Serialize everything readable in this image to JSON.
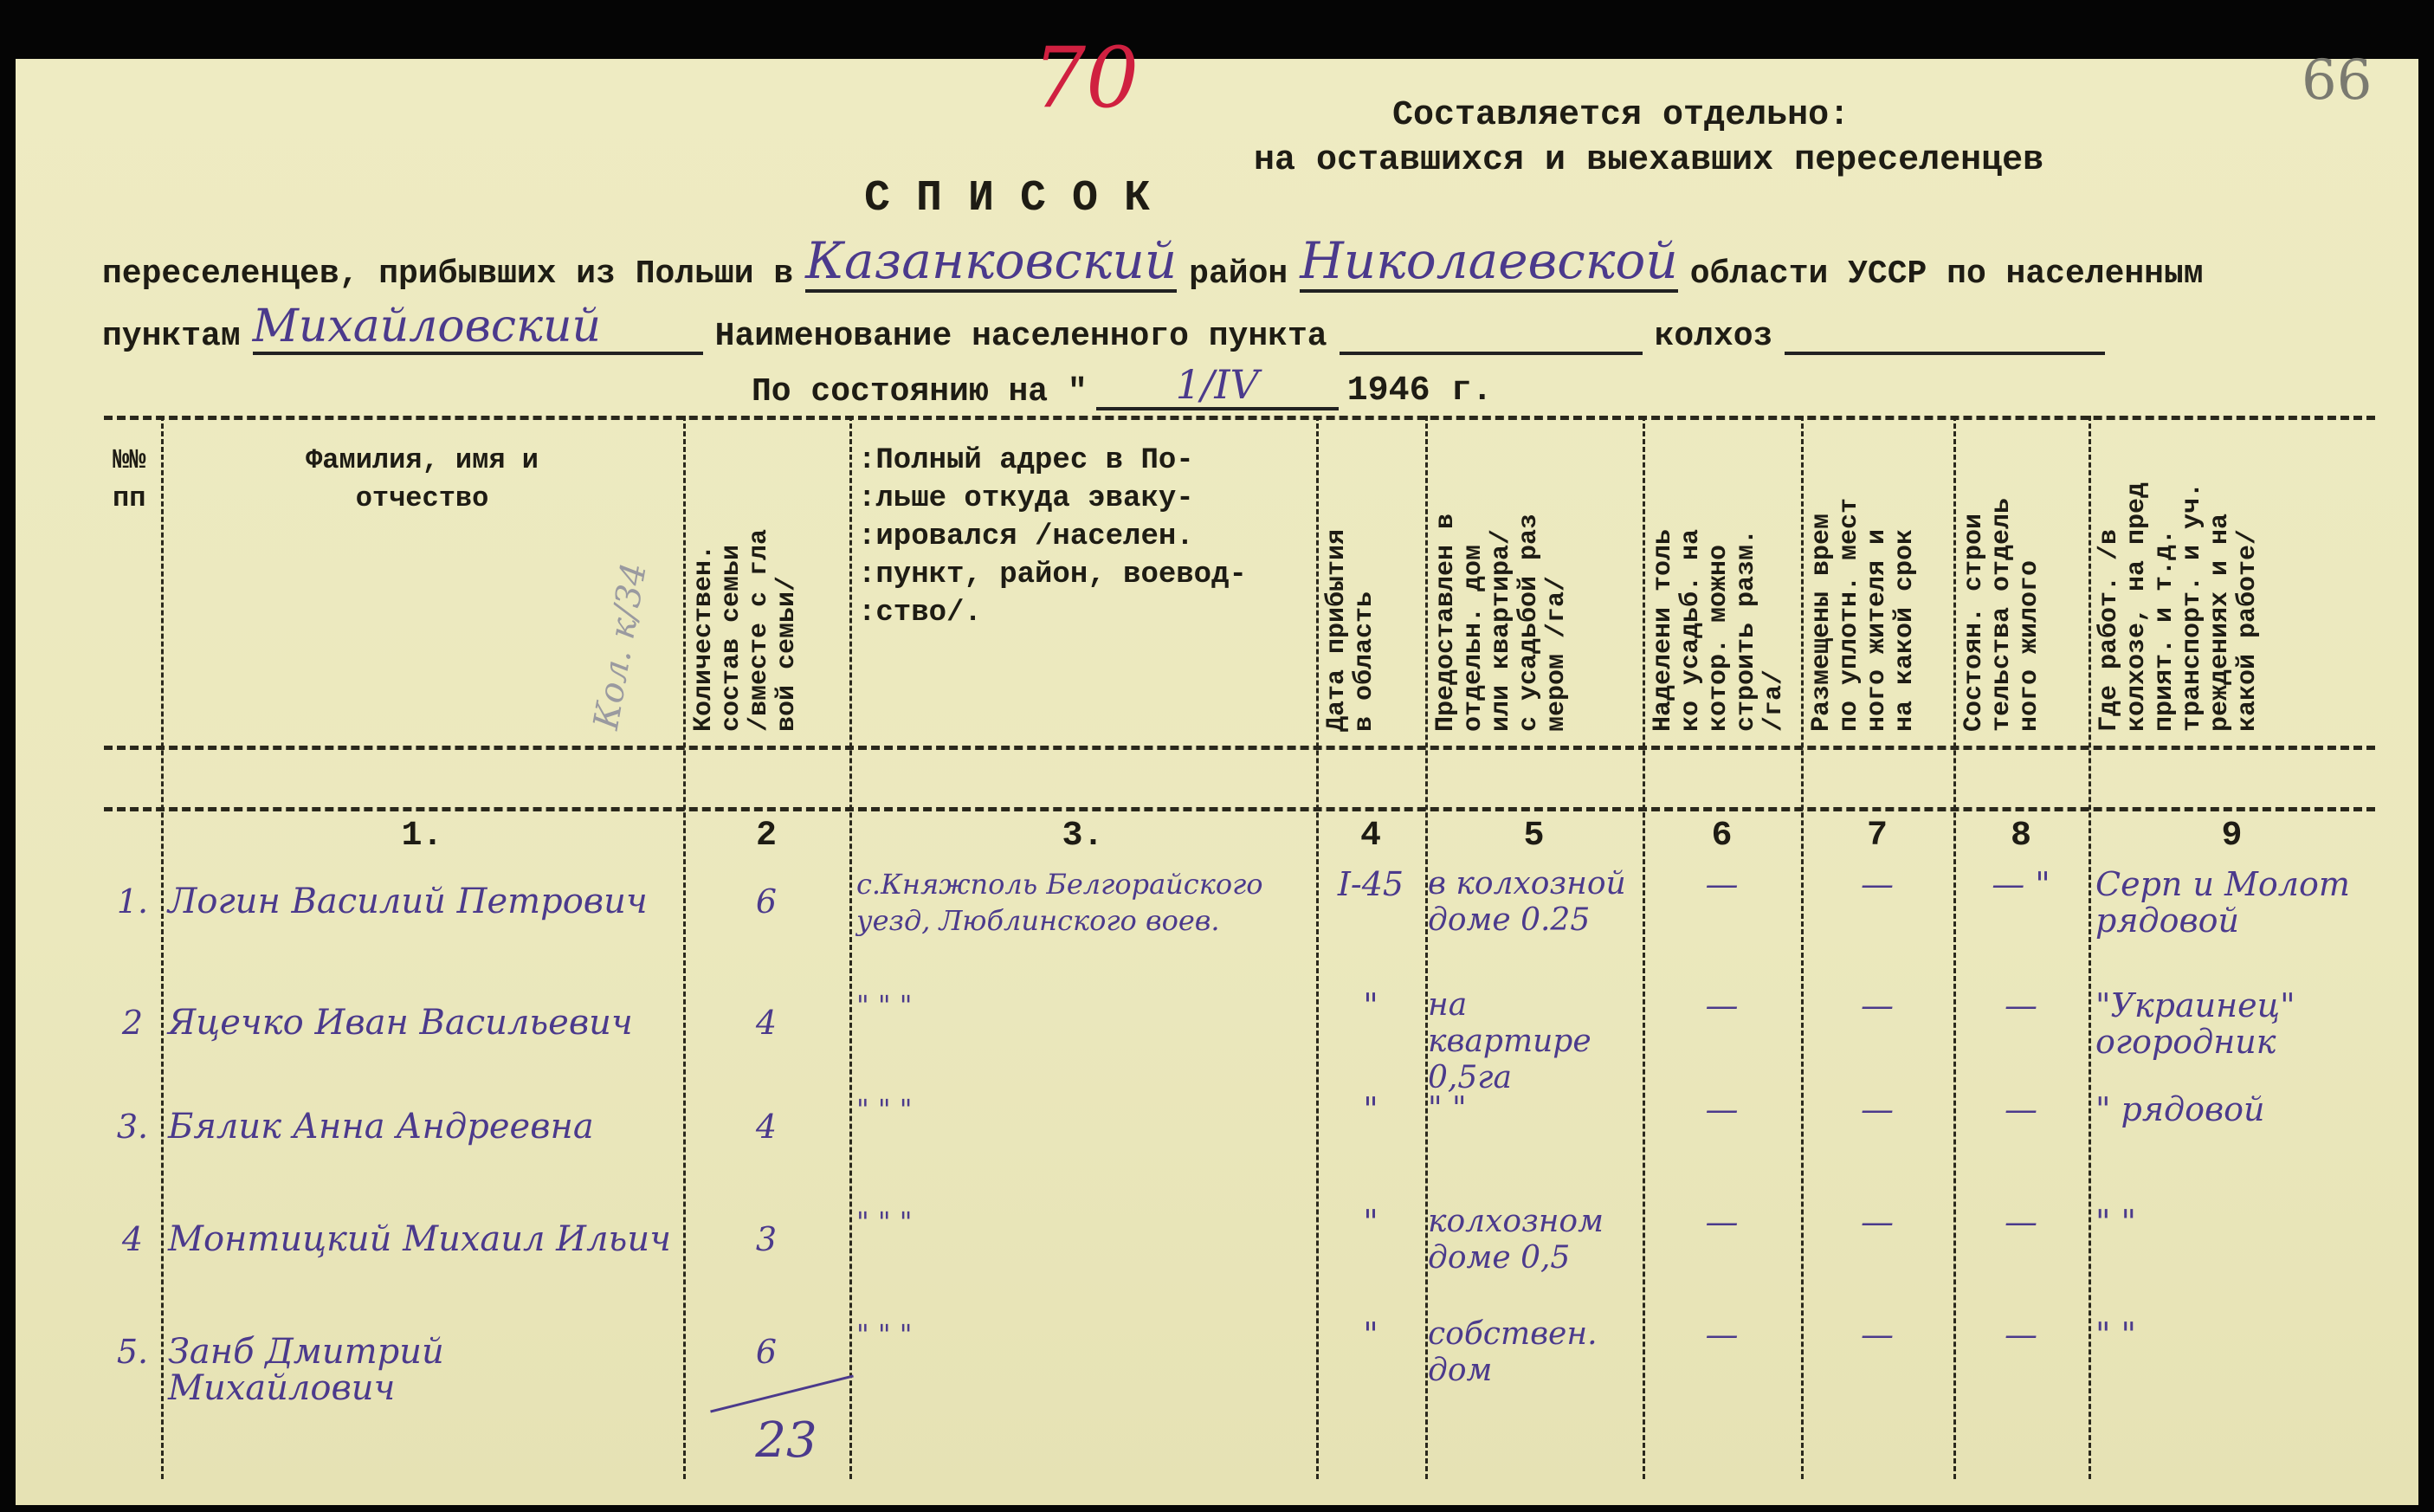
{
  "marks": {
    "sheet_number": "70",
    "page_number": "66",
    "pencil_note": "Кол. к/34"
  },
  "note": {
    "line1": "Составляется отдельно:",
    "line2": "на оставшихся и выехавших переселенцев"
  },
  "title": "С П И С О К",
  "intro": {
    "t1": "переселенцев, прибывших из Польши в",
    "district": "Казанковский",
    "t2": "район",
    "region": "Николаевской",
    "t3": "области УССР по населенным",
    "t4": "пунктам",
    "village": "Михайловский",
    "t5": "Наименование населенного пункта",
    "t6": "колхоз",
    "t7": "По состоянию на \"",
    "date": "1/IV",
    "t8": "1946 г."
  },
  "columns": [
    {
      "header": "№№\nпп",
      "num": ""
    },
    {
      "header": "Фамилия, имя и\nотчество",
      "num": "1."
    },
    {
      "header": "Количествен.\nсостав семьи\n/вместе с гла\nвой семьи/",
      "num": "2"
    },
    {
      "header": ":Полный адрес в По-\n:льше откуда эваку-\n:ировался /населен.\n:пункт, район, воевод-\n:ство/.",
      "num": "3."
    },
    {
      "header": "Дата прибытия\nв область",
      "num": "4"
    },
    {
      "header": "Предоставлен в\nотдельн. дом\nили квартира/\nс усадьбой раз\nмером /га/",
      "num": "5"
    },
    {
      "header": "Наделени толь\nко усадьб. на\nкотор. можно\nстроить разм.\n/га/",
      "num": "6"
    },
    {
      "header": "Размещены врем\nпо уплотн. мест\nного жителя и\nна какой срок",
      "num": "7"
    },
    {
      "header": "Состоян. строи\nтельства отдель\nного жилого",
      "num": "8"
    },
    {
      "header": "Где работ. /в\nколхозе, на пред\nприят. и т.д.\nтранспорт. и уч.\nреждениях и на\nкакой работе/",
      "num": "9"
    }
  ],
  "rows": [
    {
      "n": "1.",
      "name": "Логин Василий Петрович",
      "family": "6",
      "address": "с.Княжполь Белгорайского\nуезд, Люблинского воев.",
      "date": "I-45",
      "housing": "в колхозной\nдоме 0.25",
      "plot": "—",
      "temp": "—",
      "build": "—  \"",
      "work": "Серп и Молот\nрядовой"
    },
    {
      "n": "2",
      "name": "Яцечко Иван Васильевич",
      "family": "4",
      "address": "\"      \"      \"",
      "date": "\"",
      "housing": "на квартире\n0,5га",
      "plot": "—",
      "temp": "—",
      "build": "—",
      "work": "\"Украинец\"\nогородник"
    },
    {
      "n": "3.",
      "name": "Бялик Анна Андреевна",
      "family": "4",
      "address": "\"      \"      \"",
      "date": "\"",
      "housing": "\"  \"",
      "plot": "—",
      "temp": "—",
      "build": "—",
      "work": "\"   рядовой"
    },
    {
      "n": "4",
      "name": "Монтицкий Михаил Ильич",
      "family": "3",
      "address": "\"      \"      \"",
      "date": "\"",
      "housing": "колхозном\nдоме 0,5",
      "plot": "—",
      "temp": "—",
      "build": "—",
      "work": "\"      \""
    },
    {
      "n": "5.",
      "name": "Занб Дмитрий Михайлович",
      "family": "6",
      "address": "\"      \"      \"",
      "date": "\"",
      "housing": "собствен.\nдом",
      "plot": "—",
      "temp": "—",
      "build": "—",
      "work": "\"      \""
    }
  ],
  "total": "23"
}
